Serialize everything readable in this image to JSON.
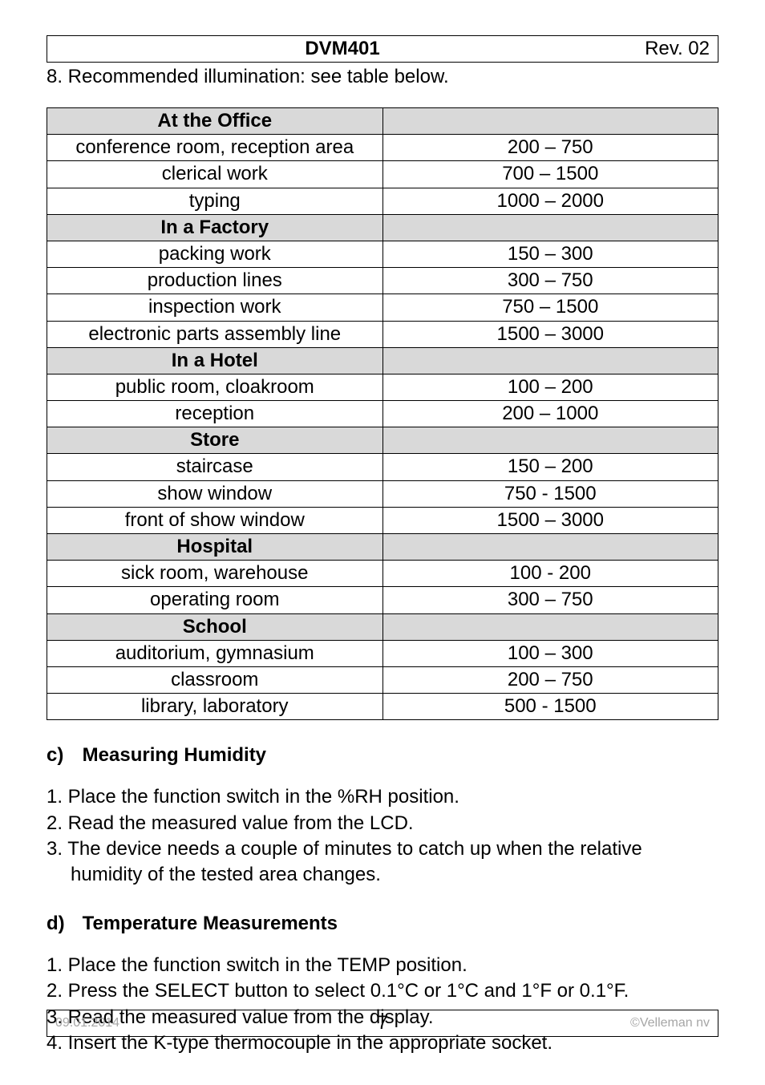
{
  "header": {
    "title": "DVM401",
    "rev": "Rev. 02"
  },
  "intro": "8. Recommended illumination: see table below.",
  "table": {
    "rows": [
      {
        "type": "section",
        "left": "At the Office",
        "right": ""
      },
      {
        "type": "data",
        "left": "conference room, reception area",
        "right": "200 – 750"
      },
      {
        "type": "data",
        "left": "clerical work",
        "right": "700 – 1500"
      },
      {
        "type": "data",
        "left": "typing",
        "right": "1000 – 2000"
      },
      {
        "type": "section",
        "left": "In a Factory",
        "right": ""
      },
      {
        "type": "data",
        "left": "packing work",
        "right": "150 – 300"
      },
      {
        "type": "data",
        "left": "production lines",
        "right": "300 – 750"
      },
      {
        "type": "data",
        "left": "inspection work",
        "right": "750 – 1500"
      },
      {
        "type": "data",
        "left": "electronic parts assembly line",
        "right": "1500 – 3000"
      },
      {
        "type": "section",
        "left": "In a Hotel",
        "right": ""
      },
      {
        "type": "data",
        "left": "public room, cloakroom",
        "right": "100 – 200"
      },
      {
        "type": "data",
        "left": "reception",
        "right": "200 – 1000"
      },
      {
        "type": "section",
        "left": "Store",
        "right": ""
      },
      {
        "type": "data",
        "left": "staircase",
        "right": "150 – 200"
      },
      {
        "type": "data",
        "left": "show window",
        "right": "750 - 1500"
      },
      {
        "type": "data",
        "left": "front of show window",
        "right": "1500 – 3000"
      },
      {
        "type": "section",
        "left": "Hospital",
        "right": ""
      },
      {
        "type": "data",
        "left": "sick room, warehouse",
        "right": "100 - 200"
      },
      {
        "type": "data",
        "left": "operating room",
        "right": "300 – 750"
      },
      {
        "type": "section",
        "left": "School",
        "right": ""
      },
      {
        "type": "data",
        "left": "auditorium, gymnasium",
        "right": "100 – 300"
      },
      {
        "type": "data",
        "left": "classroom",
        "right": "200 – 750"
      },
      {
        "type": "data",
        "left": "library, laboratory",
        "right": "500 - 1500"
      }
    ]
  },
  "section_c": {
    "letter": "c)",
    "title": "Measuring Humidity",
    "steps": [
      "1. Place the function switch in the %RH position.",
      "2. Read the measured value from the LCD.",
      "3. The device needs a couple of minutes to catch up when the relative humidity of the tested area changes."
    ]
  },
  "section_d": {
    "letter": "d)",
    "title": "Temperature Measurements",
    "steps": [
      "1. Place the function switch in the TEMP position.",
      "2. Press the SELECT button to select 0.1°C or 1°C and 1°F or 0.1°F.",
      "3. Read the measured value from the display.",
      "4. Insert the K-type thermocouple in the appropriate socket."
    ]
  },
  "footer": {
    "date": "09.01.2014",
    "page": "7",
    "copy": "©Velleman nv"
  }
}
